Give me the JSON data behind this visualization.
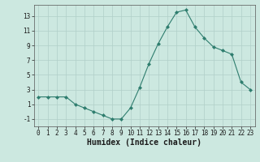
{
  "x": [
    0,
    1,
    2,
    3,
    4,
    5,
    6,
    7,
    8,
    9,
    10,
    11,
    12,
    13,
    14,
    15,
    16,
    17,
    18,
    19,
    20,
    21,
    22,
    23
  ],
  "y": [
    2,
    2,
    2,
    2,
    1,
    0.5,
    0,
    -0.5,
    -1,
    -1,
    0.5,
    3.3,
    6.5,
    9.2,
    11.5,
    13.5,
    13.8,
    11.5,
    10,
    8.8,
    8.3,
    7.8,
    4,
    3
  ],
  "line_color": "#2e7d6e",
  "marker": "D",
  "marker_size": 2.0,
  "background_color": "#cce8e0",
  "grid_color": "#b0cfc8",
  "xlabel": "Humidex (Indice chaleur)",
  "xlabel_fontsize": 7,
  "xlim": [
    -0.5,
    23.5
  ],
  "ylim": [
    -2,
    14.5
  ],
  "yticks": [
    -1,
    1,
    3,
    5,
    7,
    9,
    11,
    13
  ],
  "xticks": [
    0,
    1,
    2,
    3,
    4,
    5,
    6,
    7,
    8,
    9,
    10,
    11,
    12,
    13,
    14,
    15,
    16,
    17,
    18,
    19,
    20,
    21,
    22,
    23
  ],
  "tick_fontsize": 5.5
}
